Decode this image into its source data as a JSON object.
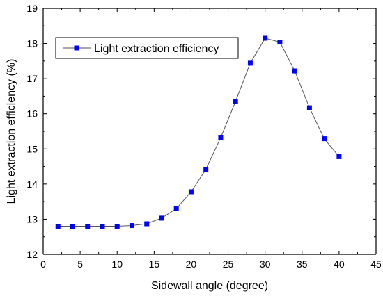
{
  "chart_data": {
    "type": "line",
    "title": "",
    "xlabel": "Sidewall angle (degree)",
    "ylabel": "Light extraction efficiency (%)",
    "xlim": [
      0,
      45
    ],
    "ylim": [
      12,
      19
    ],
    "xticks": [
      0,
      5,
      10,
      15,
      20,
      25,
      30,
      35,
      40,
      45
    ],
    "yticks": [
      12,
      13,
      14,
      15,
      16,
      17,
      18,
      19
    ],
    "grid": false,
    "legend_position": "top-left",
    "series": [
      {
        "name": "Light extraction efficiency",
        "color": "#0000ff",
        "line_color": "#555555",
        "marker": "square",
        "x": [
          2,
          4,
          6,
          8,
          10,
          12,
          14,
          16,
          18,
          20,
          22,
          24,
          26,
          28,
          30,
          32,
          34,
          36,
          38,
          40
        ],
        "y": [
          12.8,
          12.8,
          12.8,
          12.8,
          12.8,
          12.82,
          12.87,
          13.03,
          13.3,
          13.78,
          14.42,
          15.32,
          16.35,
          17.44,
          18.15,
          18.04,
          17.22,
          16.17,
          15.29,
          14.78
        ]
      }
    ]
  }
}
